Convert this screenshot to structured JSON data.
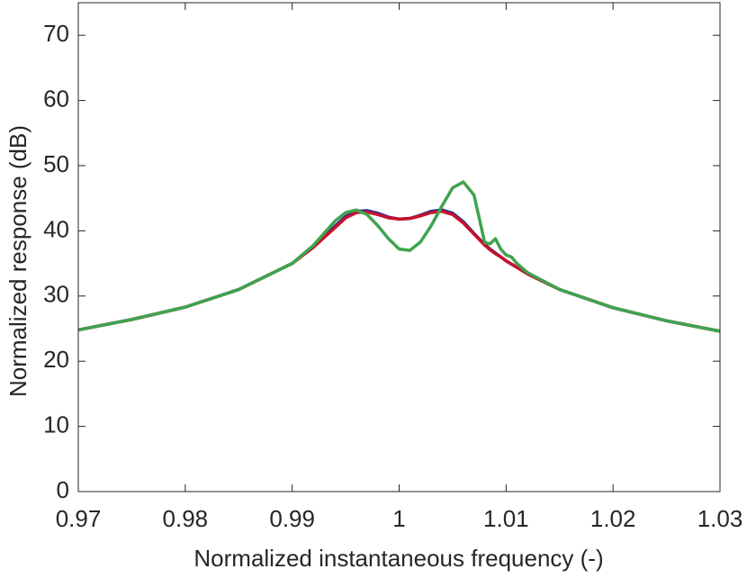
{
  "chart_data": {
    "type": "line",
    "x_label": "Normalized instantaneous frequency (-)",
    "y_label": "Normalized response (dB)",
    "x": [
      0.97,
      0.975,
      0.98,
      0.985,
      0.99,
      0.992,
      0.994,
      0.995,
      0.996,
      0.997,
      0.998,
      0.999,
      1.0,
      1.001,
      1.002,
      1.003,
      1.004,
      1.005,
      1.006,
      1.007,
      1.008,
      1.0085,
      1.009,
      1.0095,
      1.01,
      1.0105,
      1.011,
      1.012,
      1.015,
      1.02,
      1.025,
      1.03
    ],
    "series": [
      {
        "color": "#1f2f8f",
        "values": [
          24.8,
          26.4,
          28.3,
          31.0,
          35.0,
          37.6,
          40.7,
          42.2,
          43.0,
          43.1,
          42.7,
          42.1,
          41.8,
          41.9,
          42.4,
          43.0,
          43.2,
          42.7,
          41.4,
          39.6,
          37.9,
          37.2,
          36.6,
          36.0,
          35.4,
          34.9,
          34.4,
          33.4,
          31.0,
          28.2,
          26.2,
          24.6
        ]
      },
      {
        "color": "#c8102e",
        "values": [
          24.8,
          26.4,
          28.3,
          31.0,
          35.0,
          37.5,
          40.5,
          42.0,
          42.8,
          42.9,
          42.5,
          42.0,
          41.8,
          41.9,
          42.3,
          42.8,
          43.0,
          42.5,
          41.2,
          39.5,
          37.8,
          37.1,
          36.5,
          36.0,
          35.4,
          34.9,
          34.4,
          33.4,
          31.0,
          28.2,
          26.2,
          24.6
        ]
      },
      {
        "color": "#3fa34d",
        "values": [
          24.8,
          26.4,
          28.3,
          31.0,
          35.0,
          37.8,
          41.5,
          42.8,
          43.2,
          42.5,
          40.8,
          38.8,
          37.2,
          37.0,
          38.3,
          40.8,
          43.8,
          46.6,
          47.5,
          45.5,
          38.2,
          38.0,
          38.8,
          37.2,
          36.3,
          36.0,
          35.0,
          33.6,
          31.0,
          28.2,
          26.2,
          24.6
        ]
      }
    ],
    "xlim": [
      0.97,
      1.03
    ],
    "xticks": [
      0.97,
      0.98,
      0.99,
      1,
      1.01,
      1.02,
      1.03
    ],
    "ylim": [
      0,
      75
    ],
    "yticks": [
      0,
      10,
      20,
      30,
      40,
      50,
      60,
      70
    ]
  }
}
